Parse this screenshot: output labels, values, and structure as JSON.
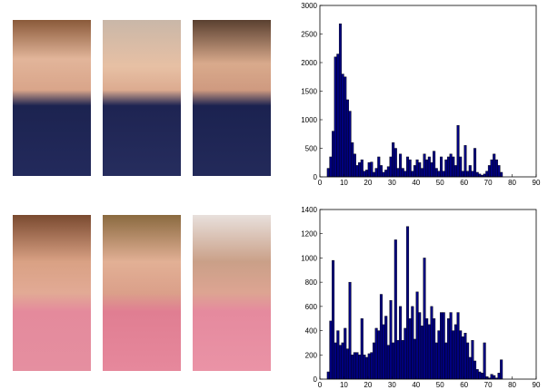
{
  "chart_data": [
    {
      "type": "histogram",
      "color": "#000080",
      "edgecolor": "#000000",
      "bins": [
        3,
        4,
        5,
        6,
        7,
        8,
        9,
        10,
        11,
        12,
        13,
        14,
        15,
        16,
        17,
        18,
        19,
        20,
        21,
        22,
        23,
        24,
        25,
        26,
        27,
        28,
        29,
        30,
        31,
        32,
        33,
        34,
        35,
        36,
        37,
        38,
        39,
        40,
        41,
        42,
        43,
        44,
        45,
        46,
        47,
        48,
        49,
        50,
        51,
        52,
        53,
        54,
        55,
        56,
        57,
        58,
        59,
        60,
        61,
        62,
        63,
        64,
        65,
        66,
        67,
        68,
        69,
        70,
        71,
        72,
        73,
        74,
        75,
        76,
        77
      ],
      "values": [
        150,
        350,
        800,
        2100,
        2150,
        2680,
        1800,
        1750,
        1350,
        1150,
        600,
        400,
        200,
        250,
        300,
        100,
        120,
        250,
        260,
        80,
        150,
        350,
        200,
        80,
        120,
        180,
        350,
        600,
        500,
        150,
        400,
        150,
        100,
        350,
        300,
        100,
        200,
        300,
        250,
        150,
        400,
        300,
        350,
        250,
        450,
        150,
        100,
        350,
        100,
        300,
        350,
        400,
        350,
        200,
        900,
        350,
        100,
        550,
        100,
        200,
        100,
        500,
        80,
        50,
        30,
        50,
        100,
        200,
        300,
        400,
        300,
        200,
        80,
        0
      ],
      "xlim": [
        0,
        90
      ],
      "xticks": [
        0,
        10,
        20,
        30,
        40,
        50,
        60,
        70,
        80,
        90
      ],
      "ylim": [
        0,
        3000
      ],
      "yticks": [
        0,
        500,
        1000,
        1500,
        2000,
        2500,
        3000
      ]
    },
    {
      "type": "histogram",
      "color": "#000080",
      "edgecolor": "#000000",
      "bins": [
        3,
        4,
        5,
        6,
        7,
        8,
        9,
        10,
        11,
        12,
        13,
        14,
        15,
        16,
        17,
        18,
        19,
        20,
        21,
        22,
        23,
        24,
        25,
        26,
        27,
        28,
        29,
        30,
        31,
        32,
        33,
        34,
        35,
        36,
        37,
        38,
        39,
        40,
        41,
        42,
        43,
        44,
        45,
        46,
        47,
        48,
        49,
        50,
        51,
        52,
        53,
        54,
        55,
        56,
        57,
        58,
        59,
        60,
        61,
        62,
        63,
        64,
        65,
        66,
        67,
        68,
        69,
        70,
        71,
        72,
        73,
        74,
        75,
        76,
        77
      ],
      "values": [
        60,
        480,
        980,
        300,
        400,
        280,
        300,
        420,
        250,
        800,
        200,
        220,
        220,
        200,
        500,
        200,
        180,
        210,
        220,
        300,
        420,
        400,
        700,
        450,
        520,
        280,
        650,
        300,
        1150,
        320,
        600,
        320,
        420,
        1260,
        500,
        600,
        330,
        720,
        550,
        440,
        1000,
        500,
        450,
        600,
        500,
        300,
        400,
        550,
        550,
        300,
        500,
        550,
        400,
        450,
        550,
        400,
        350,
        380,
        300,
        180,
        320,
        150,
        80,
        60,
        50,
        300,
        20,
        10,
        40,
        30,
        10,
        50,
        160,
        0
      ],
      "xlim": [
        0,
        90
      ],
      "xticks": [
        0,
        10,
        20,
        30,
        40,
        50,
        60,
        70,
        80,
        90
      ],
      "ylim": [
        0,
        1400
      ],
      "yticks": [
        0,
        200,
        400,
        600,
        800,
        1000,
        1200,
        1400
      ]
    }
  ]
}
